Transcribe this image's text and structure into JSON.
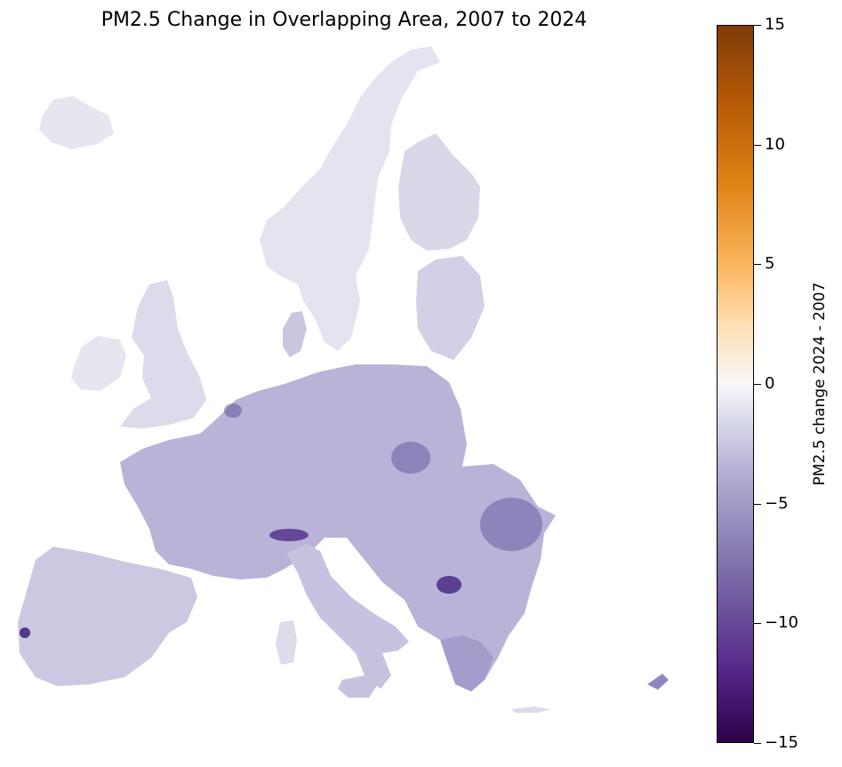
{
  "title": "PM2.5 Change in Overlapping Area, 2007 to 2024",
  "colorbar": {
    "label": "PM2.5 change 2024 - 2007",
    "min": -15,
    "max": 15,
    "ticks": [
      {
        "value": 15,
        "label": "15"
      },
      {
        "value": 10,
        "label": "10"
      },
      {
        "value": 5,
        "label": "5"
      },
      {
        "value": 0,
        "label": "0"
      },
      {
        "value": -5,
        "label": "−5"
      },
      {
        "value": -10,
        "label": "−10"
      },
      {
        "value": -15,
        "label": "−15"
      }
    ],
    "colormap": "PuOr",
    "colors": [
      "#2d004b",
      "#542788",
      "#8073ac",
      "#b2abd2",
      "#d8daeb",
      "#f7f7f7",
      "#fee0b6",
      "#fdb863",
      "#e08214",
      "#b35806",
      "#7f3b08"
    ]
  }
}
